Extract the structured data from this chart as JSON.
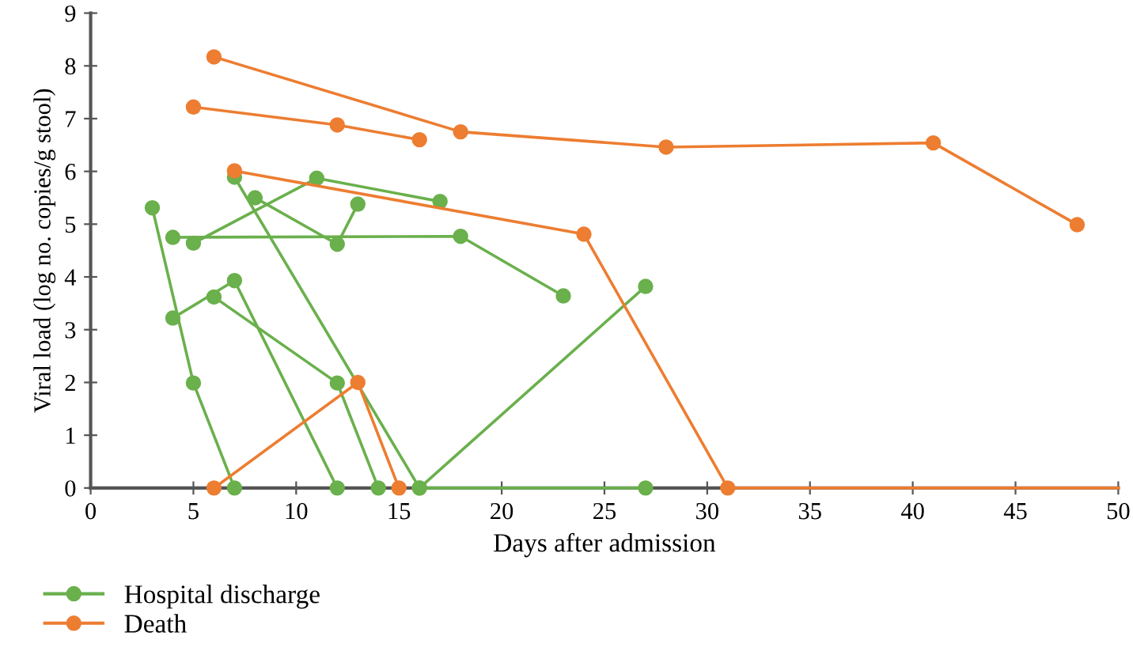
{
  "chart_data": {
    "type": "line",
    "xlabel": "Days after admission",
    "ylabel": "Viral load (log no. copies/g stool)",
    "xlim": [
      0,
      50
    ],
    "ylim": [
      0,
      9
    ],
    "xticks": [
      0,
      5,
      10,
      15,
      20,
      25,
      30,
      35,
      40,
      45,
      50
    ],
    "yticks": [
      0,
      1,
      2,
      3,
      4,
      5,
      6,
      7,
      8,
      9
    ],
    "grid": false,
    "legend": "bottom left",
    "marker": "circle",
    "line_style": "solid",
    "series": [
      {
        "name": "Hospital discharge",
        "color": "#6ab04c",
        "x": [
          3,
          5,
          7
        ],
        "values": [
          5.31,
          1.99,
          0
        ]
      },
      {
        "color": "#6ab04c",
        "x": [
          4,
          18,
          23
        ],
        "values": [
          4.75,
          4.77,
          3.64
        ]
      },
      {
        "color": "#6ab04c",
        "x": [
          4,
          7,
          12
        ],
        "values": [
          3.22,
          3.93,
          0
        ]
      },
      {
        "color": "#6ab04c",
        "x": [
          5,
          11,
          17
        ],
        "values": [
          4.64,
          5.87,
          5.43
        ]
      },
      {
        "color": "#6ab04c",
        "x": [
          6,
          12,
          14
        ],
        "values": [
          3.62,
          1.99,
          0
        ]
      },
      {
        "color": "#6ab04c",
        "x": [
          7,
          16,
          27
        ],
        "values": [
          5.89,
          0,
          3.82
        ]
      },
      {
        "color": "#6ab04c",
        "x": [
          16,
          27
        ],
        "values": [
          0,
          0
        ]
      },
      {
        "color": "#6ab04c",
        "x": [
          8,
          12,
          13
        ],
        "values": [
          5.5,
          4.62,
          5.38
        ]
      },
      {
        "name": "Death",
        "color": "#ed7d31",
        "x": [
          6,
          18,
          28,
          41,
          48
        ],
        "values": [
          8.17,
          6.75,
          6.46,
          6.54,
          4.99
        ]
      },
      {
        "color": "#ed7d31",
        "x": [
          5,
          12,
          16
        ],
        "values": [
          7.22,
          6.88,
          6.6
        ]
      },
      {
        "color": "#ed7d31",
        "x": [
          7,
          24,
          31
        ],
        "values": [
          6.01,
          4.81,
          0
        ]
      },
      {
        "color": "#ed7d31",
        "x": [
          31,
          50
        ],
        "values": [
          0,
          0
        ],
        "marker": "none"
      },
      {
        "color": "#ed7d31",
        "x": [
          6,
          13,
          15
        ],
        "values": [
          0,
          2.0,
          0
        ]
      }
    ]
  }
}
